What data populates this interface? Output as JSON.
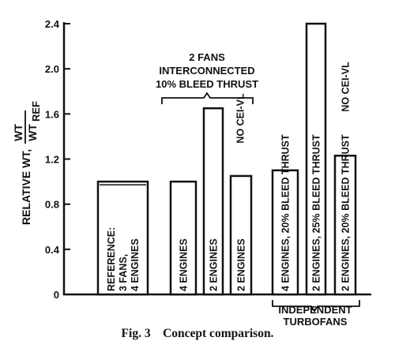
{
  "chart_data": {
    "type": "bar",
    "ylabel": "RELATIVE WT,",
    "ylabel_fraction": {
      "numerator": "WT",
      "denominator": "WT",
      "denominator_sub": "REF"
    },
    "yticks": [
      "0",
      "0.4",
      "0.8",
      "1.2",
      "1.6",
      "2.0",
      "2.4"
    ],
    "ylim": [
      0,
      2.4
    ],
    "grid": false,
    "bars": [
      {
        "lines": [
          "REFERENCE:",
          "3 FANS,",
          "4 ENGINES"
        ],
        "value": 1.0
      },
      {
        "lines": [
          "4 ENGINES"
        ],
        "value": 1.0
      },
      {
        "lines": [
          "2 ENGINES"
        ],
        "value": 1.65
      },
      {
        "lines": [
          "2 ENGINES"
        ],
        "value": 1.05,
        "note": "NO CEI-VL"
      },
      {
        "lines": [
          "4 ENGINES, 20% BLEED THRUST"
        ],
        "value": 1.1
      },
      {
        "lines": [
          "2 ENGINES, 25% BLEED THRUST"
        ],
        "value": 2.4
      },
      {
        "lines": [
          "2 ENGINES, 20% BLEED THRUST"
        ],
        "value": 1.23,
        "note": "NO CEI-VL"
      }
    ],
    "group_labels": [
      {
        "lines": [
          "2 FANS",
          "INTERCONNECTED",
          "10% BLEED THRUST"
        ]
      },
      {
        "lines": [
          "INDEPENDENT",
          "TURBOFANS"
        ]
      }
    ]
  },
  "caption": {
    "fig": "Fig. 3",
    "text": "Concept comparison."
  }
}
